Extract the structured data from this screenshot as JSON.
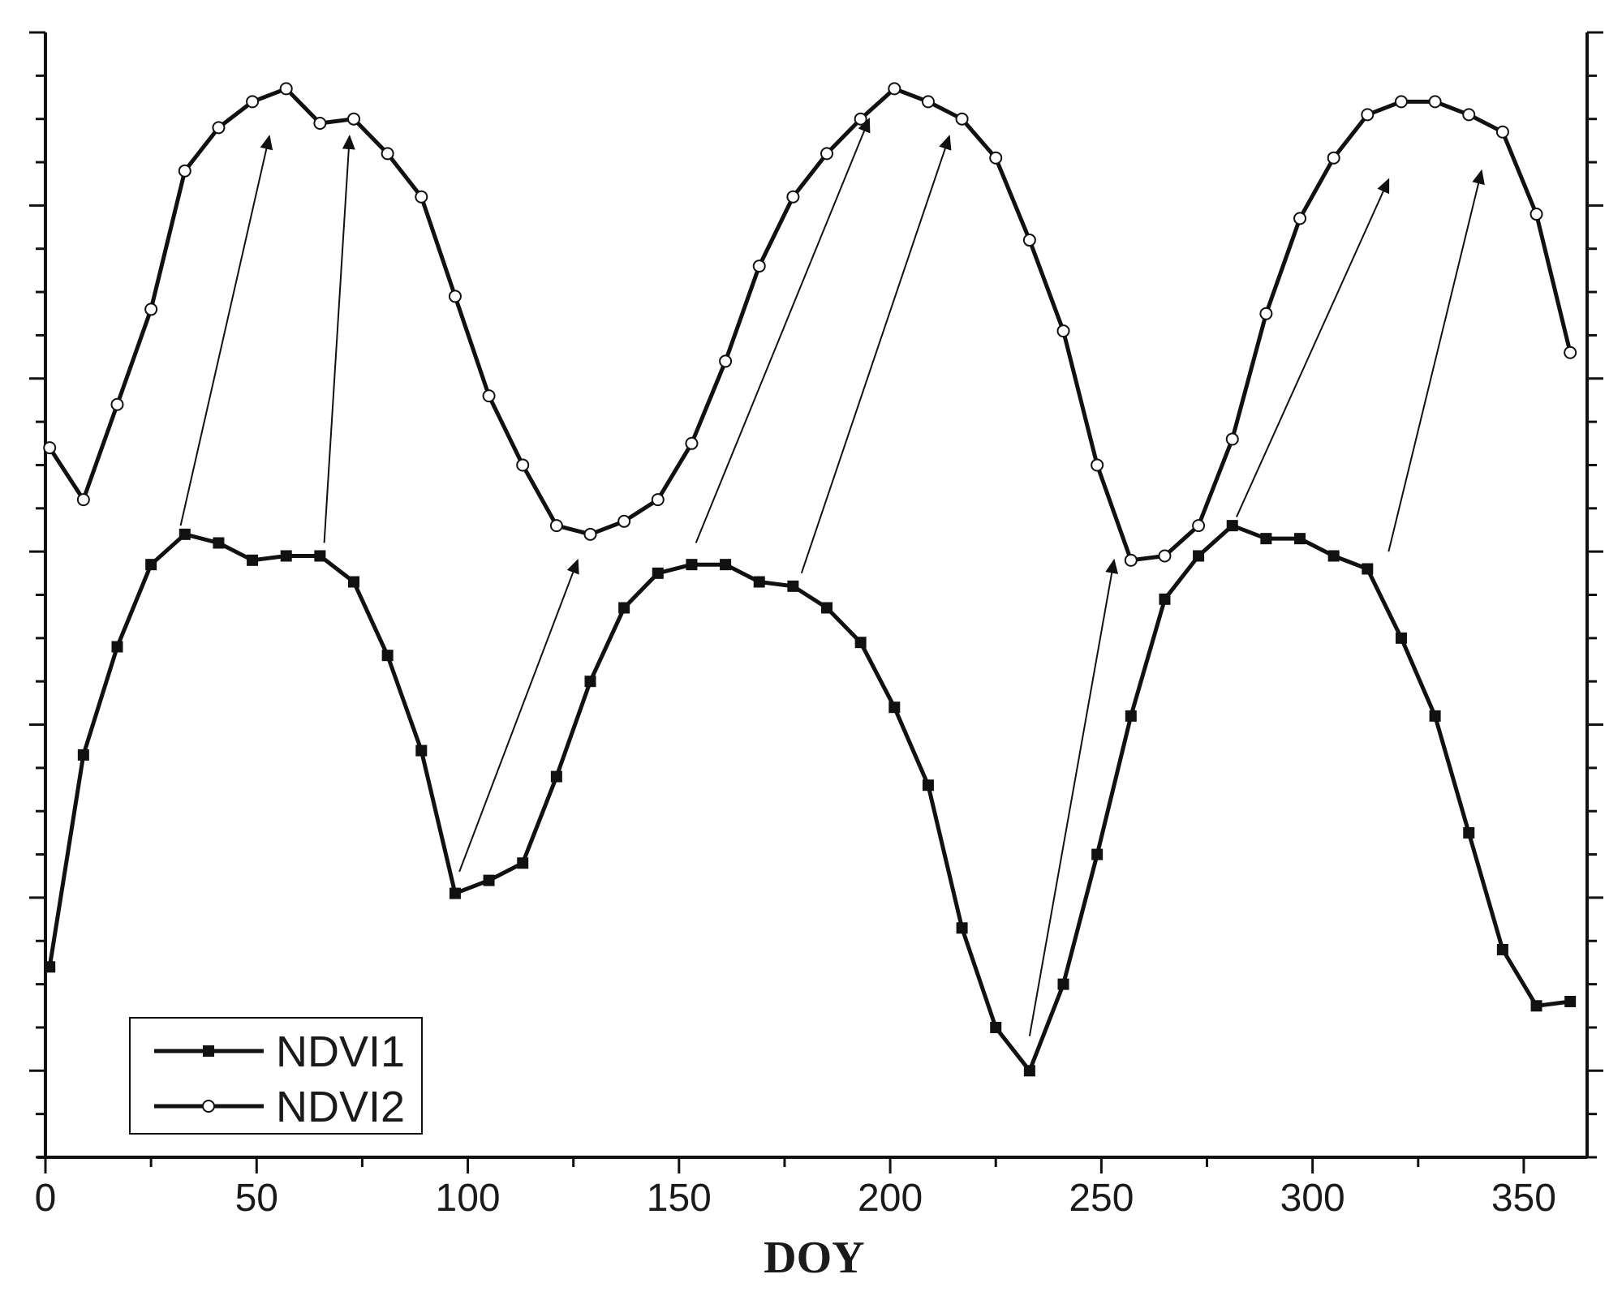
{
  "chart_data": {
    "type": "line",
    "title": "",
    "xlabel": "DOY",
    "ylabel": "",
    "xlim": [
      0,
      365
    ],
    "ylim": [
      0,
      13
    ],
    "y_tick_labels_shown": false,
    "x_ticks": [
      0,
      50,
      100,
      150,
      200,
      250,
      300,
      350
    ],
    "x_tick_labels": [
      "0",
      "50",
      "100",
      "150",
      "200",
      "250",
      "300",
      "350"
    ],
    "legend": {
      "placement": "bottom-left"
    },
    "series": [
      {
        "name": "NDVI1",
        "marker": "filled-square",
        "color": "#111111",
        "points": [
          [
            1,
            2.2
          ],
          [
            9,
            4.65
          ],
          [
            17,
            5.9
          ],
          [
            25,
            6.85
          ],
          [
            33,
            7.2
          ],
          [
            41,
            7.1
          ],
          [
            49,
            6.9
          ],
          [
            57,
            6.95
          ],
          [
            65,
            6.95
          ],
          [
            73,
            6.65
          ],
          [
            81,
            5.8
          ],
          [
            89,
            4.7
          ],
          [
            97,
            3.05
          ],
          [
            105,
            3.2
          ],
          [
            113,
            3.4
          ],
          [
            121,
            4.4
          ],
          [
            129,
            5.5
          ],
          [
            137,
            6.35
          ],
          [
            145,
            6.75
          ],
          [
            153,
            6.85
          ],
          [
            161,
            6.85
          ],
          [
            169,
            6.65
          ],
          [
            177,
            6.6
          ],
          [
            185,
            6.35
          ],
          [
            193,
            5.95
          ],
          [
            201,
            5.2
          ],
          [
            209,
            4.3
          ],
          [
            217,
            2.65
          ],
          [
            225,
            1.5
          ],
          [
            233,
            1.0
          ],
          [
            241,
            2.0
          ],
          [
            249,
            3.5
          ],
          [
            257,
            5.1
          ],
          [
            265,
            6.45
          ],
          [
            273,
            6.95
          ],
          [
            281,
            7.3
          ],
          [
            289,
            7.15
          ],
          [
            297,
            7.15
          ],
          [
            305,
            6.95
          ],
          [
            313,
            6.8
          ],
          [
            321,
            6.0
          ],
          [
            329,
            5.1
          ],
          [
            337,
            3.75
          ],
          [
            345,
            2.4
          ],
          [
            353,
            1.75
          ],
          [
            361,
            1.8
          ]
        ]
      },
      {
        "name": "NDVI2",
        "marker": "open-circle",
        "color": "#111111",
        "points": [
          [
            1,
            8.2
          ],
          [
            9,
            7.6
          ],
          [
            17,
            8.7
          ],
          [
            25,
            9.8
          ],
          [
            33,
            11.4
          ],
          [
            41,
            11.9
          ],
          [
            49,
            12.2
          ],
          [
            57,
            12.35
          ],
          [
            65,
            11.95
          ],
          [
            73,
            12.0
          ],
          [
            81,
            11.6
          ],
          [
            89,
            11.1
          ],
          [
            97,
            9.95
          ],
          [
            105,
            8.8
          ],
          [
            113,
            8.0
          ],
          [
            121,
            7.3
          ],
          [
            129,
            7.2
          ],
          [
            137,
            7.35
          ],
          [
            145,
            7.6
          ],
          [
            153,
            8.25
          ],
          [
            161,
            9.2
          ],
          [
            169,
            10.3
          ],
          [
            177,
            11.1
          ],
          [
            185,
            11.6
          ],
          [
            193,
            12.0
          ],
          [
            201,
            12.35
          ],
          [
            209,
            12.2
          ],
          [
            217,
            12.0
          ],
          [
            225,
            11.55
          ],
          [
            233,
            10.6
          ],
          [
            241,
            9.55
          ],
          [
            249,
            8.0
          ],
          [
            257,
            6.9
          ],
          [
            265,
            6.95
          ],
          [
            273,
            7.3
          ],
          [
            281,
            8.3
          ],
          [
            289,
            9.75
          ],
          [
            297,
            10.85
          ],
          [
            305,
            11.55
          ],
          [
            313,
            12.05
          ],
          [
            321,
            12.2
          ],
          [
            329,
            12.2
          ],
          [
            337,
            12.05
          ],
          [
            345,
            11.85
          ],
          [
            353,
            10.9
          ],
          [
            361,
            9.3
          ]
        ]
      }
    ],
    "annotations": [
      {
        "type": "arrow",
        "from": [
          32,
          7.3
        ],
        "to": [
          53,
          11.8
        ]
      },
      {
        "type": "arrow",
        "from": [
          66,
          7.1
        ],
        "to": [
          72,
          11.8
        ]
      },
      {
        "type": "arrow",
        "from": [
          98,
          3.3
        ],
        "to": [
          126,
          6.9
        ]
      },
      {
        "type": "arrow",
        "from": [
          154,
          7.1
        ],
        "to": [
          195,
          12.0
        ]
      },
      {
        "type": "arrow",
        "from": [
          179,
          6.75
        ],
        "to": [
          214,
          11.8
        ]
      },
      {
        "type": "arrow",
        "from": [
          233,
          1.4
        ],
        "to": [
          253,
          6.9
        ]
      },
      {
        "type": "arrow",
        "from": [
          282,
          7.4
        ],
        "to": [
          318,
          11.3
        ]
      },
      {
        "type": "arrow",
        "from": [
          318,
          7.0
        ],
        "to": [
          340,
          11.4
        ]
      }
    ]
  }
}
